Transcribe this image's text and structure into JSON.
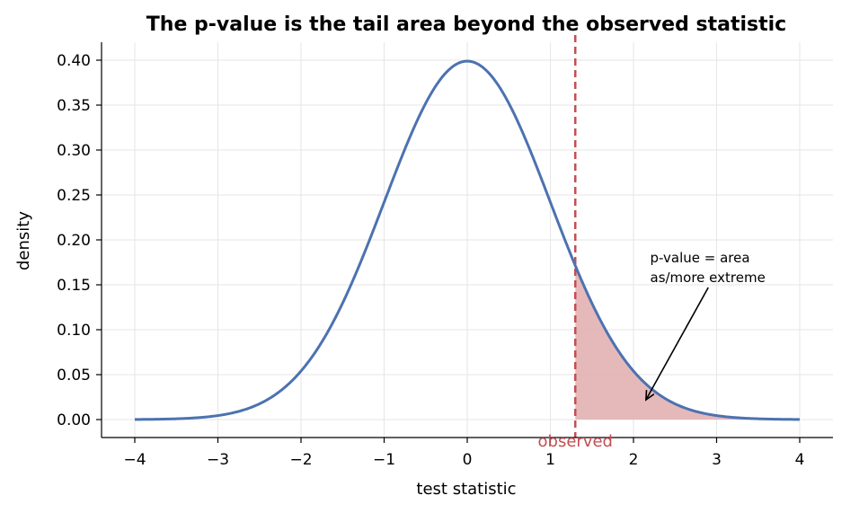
{
  "chart_data": {
    "type": "line",
    "title": "The p-value is the tail area beyond the observed statistic",
    "xlabel": "test statistic",
    "ylabel": "density",
    "xlim": [
      -4.4,
      4.4
    ],
    "ylim": [
      -0.02,
      0.42
    ],
    "x_ticks": [
      -4,
      -3,
      -2,
      -1,
      0,
      1,
      2,
      3,
      4
    ],
    "x_tick_labels": [
      "−4",
      "−3",
      "−2",
      "−1",
      "0",
      "1",
      "2",
      "3",
      "4"
    ],
    "y_ticks": [
      0.0,
      0.05,
      0.1,
      0.15,
      0.2,
      0.25,
      0.3,
      0.35,
      0.4
    ],
    "y_tick_labels": [
      "0.00",
      "0.05",
      "0.10",
      "0.15",
      "0.20",
      "0.25",
      "0.30",
      "0.35",
      "0.40"
    ],
    "grid": true,
    "series": [
      {
        "x": [
          -4.0,
          -3.5,
          -3.0,
          -2.5,
          -2.0,
          -1.5,
          -1.0,
          -0.5,
          0.0,
          0.5,
          1.0,
          1.3,
          1.5,
          2.0,
          2.5,
          3.0,
          3.5,
          4.0
        ],
        "values": [
          0.0001,
          0.0009,
          0.0044,
          0.0175,
          0.054,
          0.1295,
          0.242,
          0.352,
          0.399,
          0.352,
          0.242,
          0.1714,
          0.1295,
          0.054,
          0.0175,
          0.0044,
          0.0009,
          0.0001
        ],
        "color": "#4c72b0"
      }
    ],
    "observed": {
      "x": 1.3,
      "label": "observed",
      "color": "#c44e52"
    },
    "shaded_region": {
      "from": 1.3,
      "to": 4.0,
      "color": "#e4b5b6"
    },
    "annotation": {
      "lines": [
        "p-value = area",
        "as/more extreme"
      ],
      "text_at": [
        2.2,
        0.175
      ],
      "arrow_from": [
        2.9,
        0.147
      ],
      "arrow_to": [
        2.15,
        0.022
      ]
    }
  }
}
